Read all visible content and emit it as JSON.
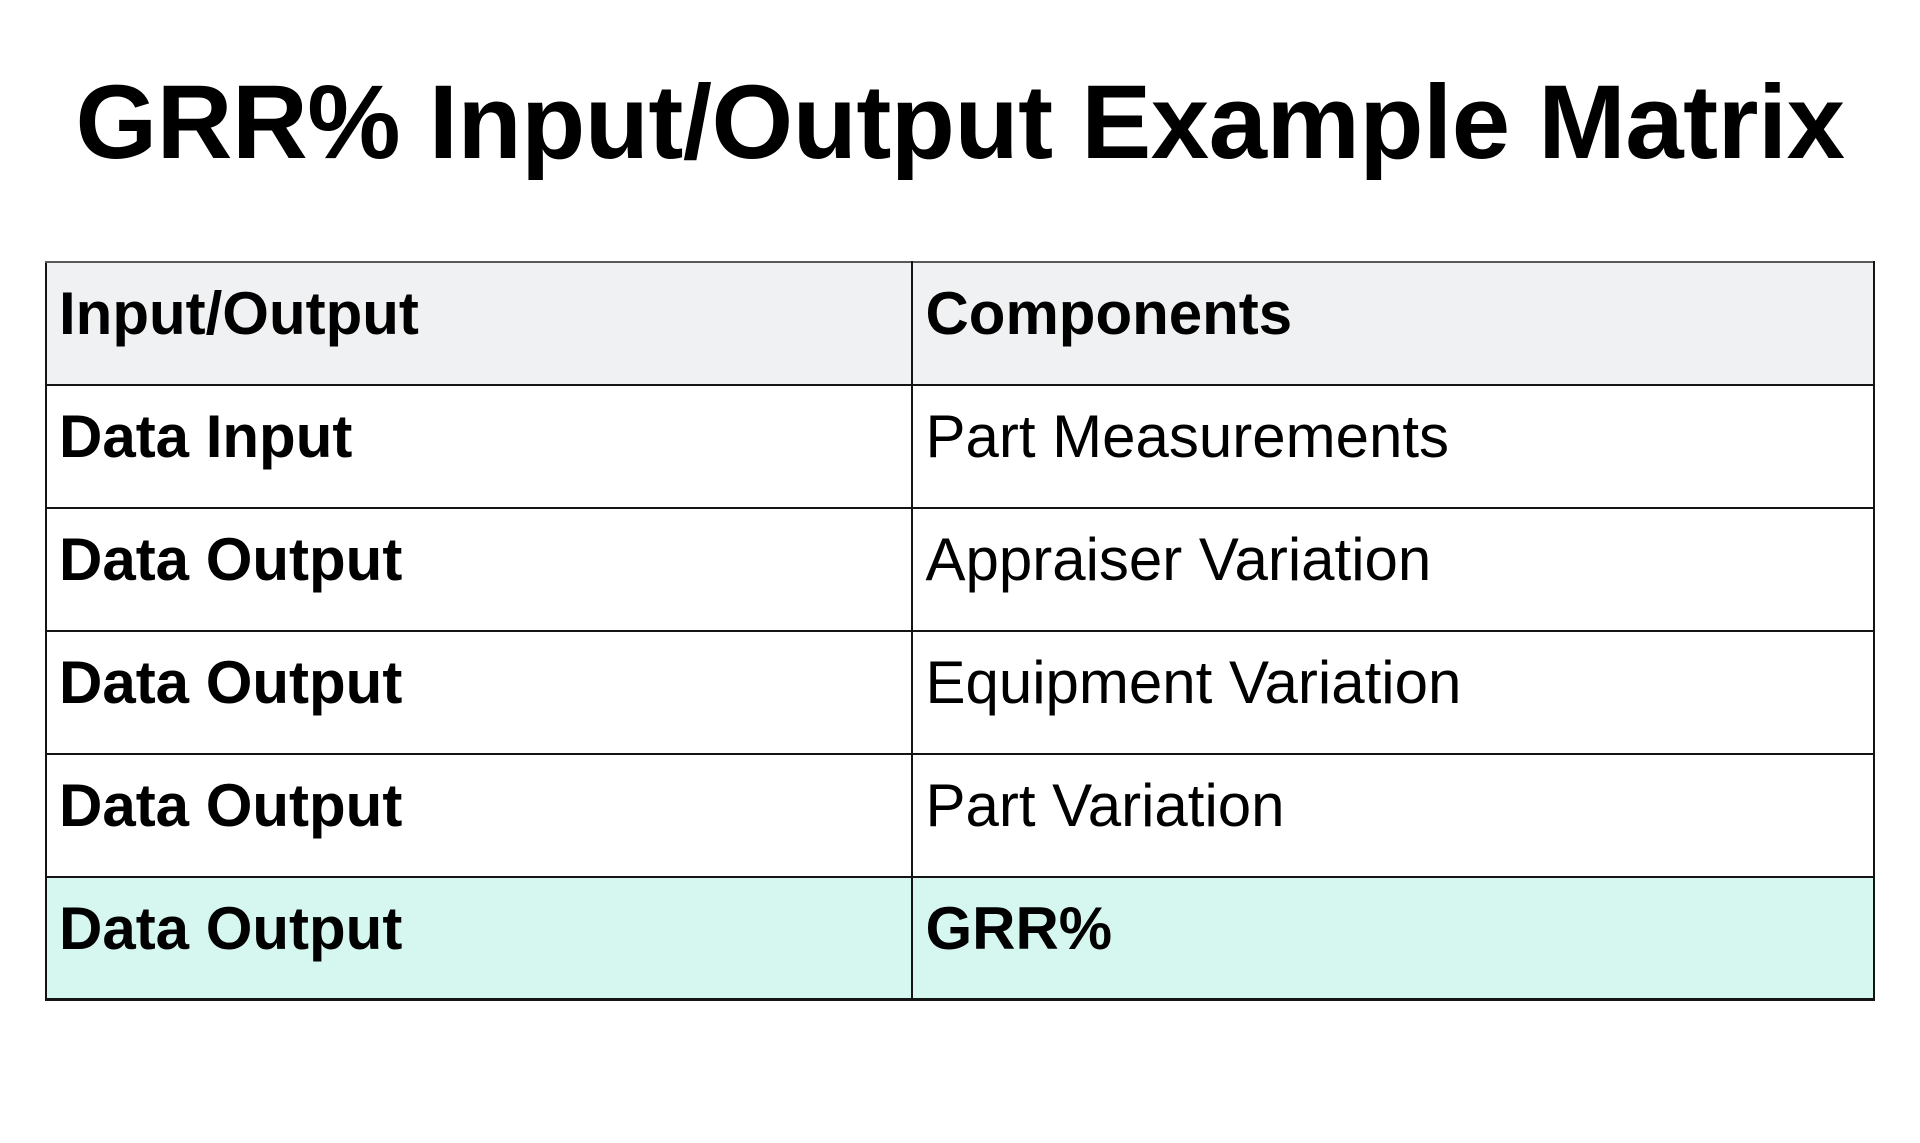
{
  "title": "GRR% Input/Output Example Matrix",
  "table": {
    "columns": [
      "Input/Output",
      "Components"
    ],
    "rows": [
      {
        "io": "Data Input",
        "component": "Part Measurements",
        "highlighted": false
      },
      {
        "io": "Data Output",
        "component": "Appraiser Variation",
        "highlighted": false
      },
      {
        "io": "Data Output",
        "component": "Equipment Variation",
        "highlighted": false
      },
      {
        "io": "Data Output",
        "component": "Part Variation",
        "highlighted": false
      },
      {
        "io": "Data Output",
        "component": "GRR%",
        "highlighted": true
      }
    ]
  },
  "colors": {
    "header_bg": "#f0f1f2",
    "highlight_row_bg": "#d6f7f0",
    "border": "#141414",
    "top_border": "#58595b",
    "text": "#000000"
  }
}
